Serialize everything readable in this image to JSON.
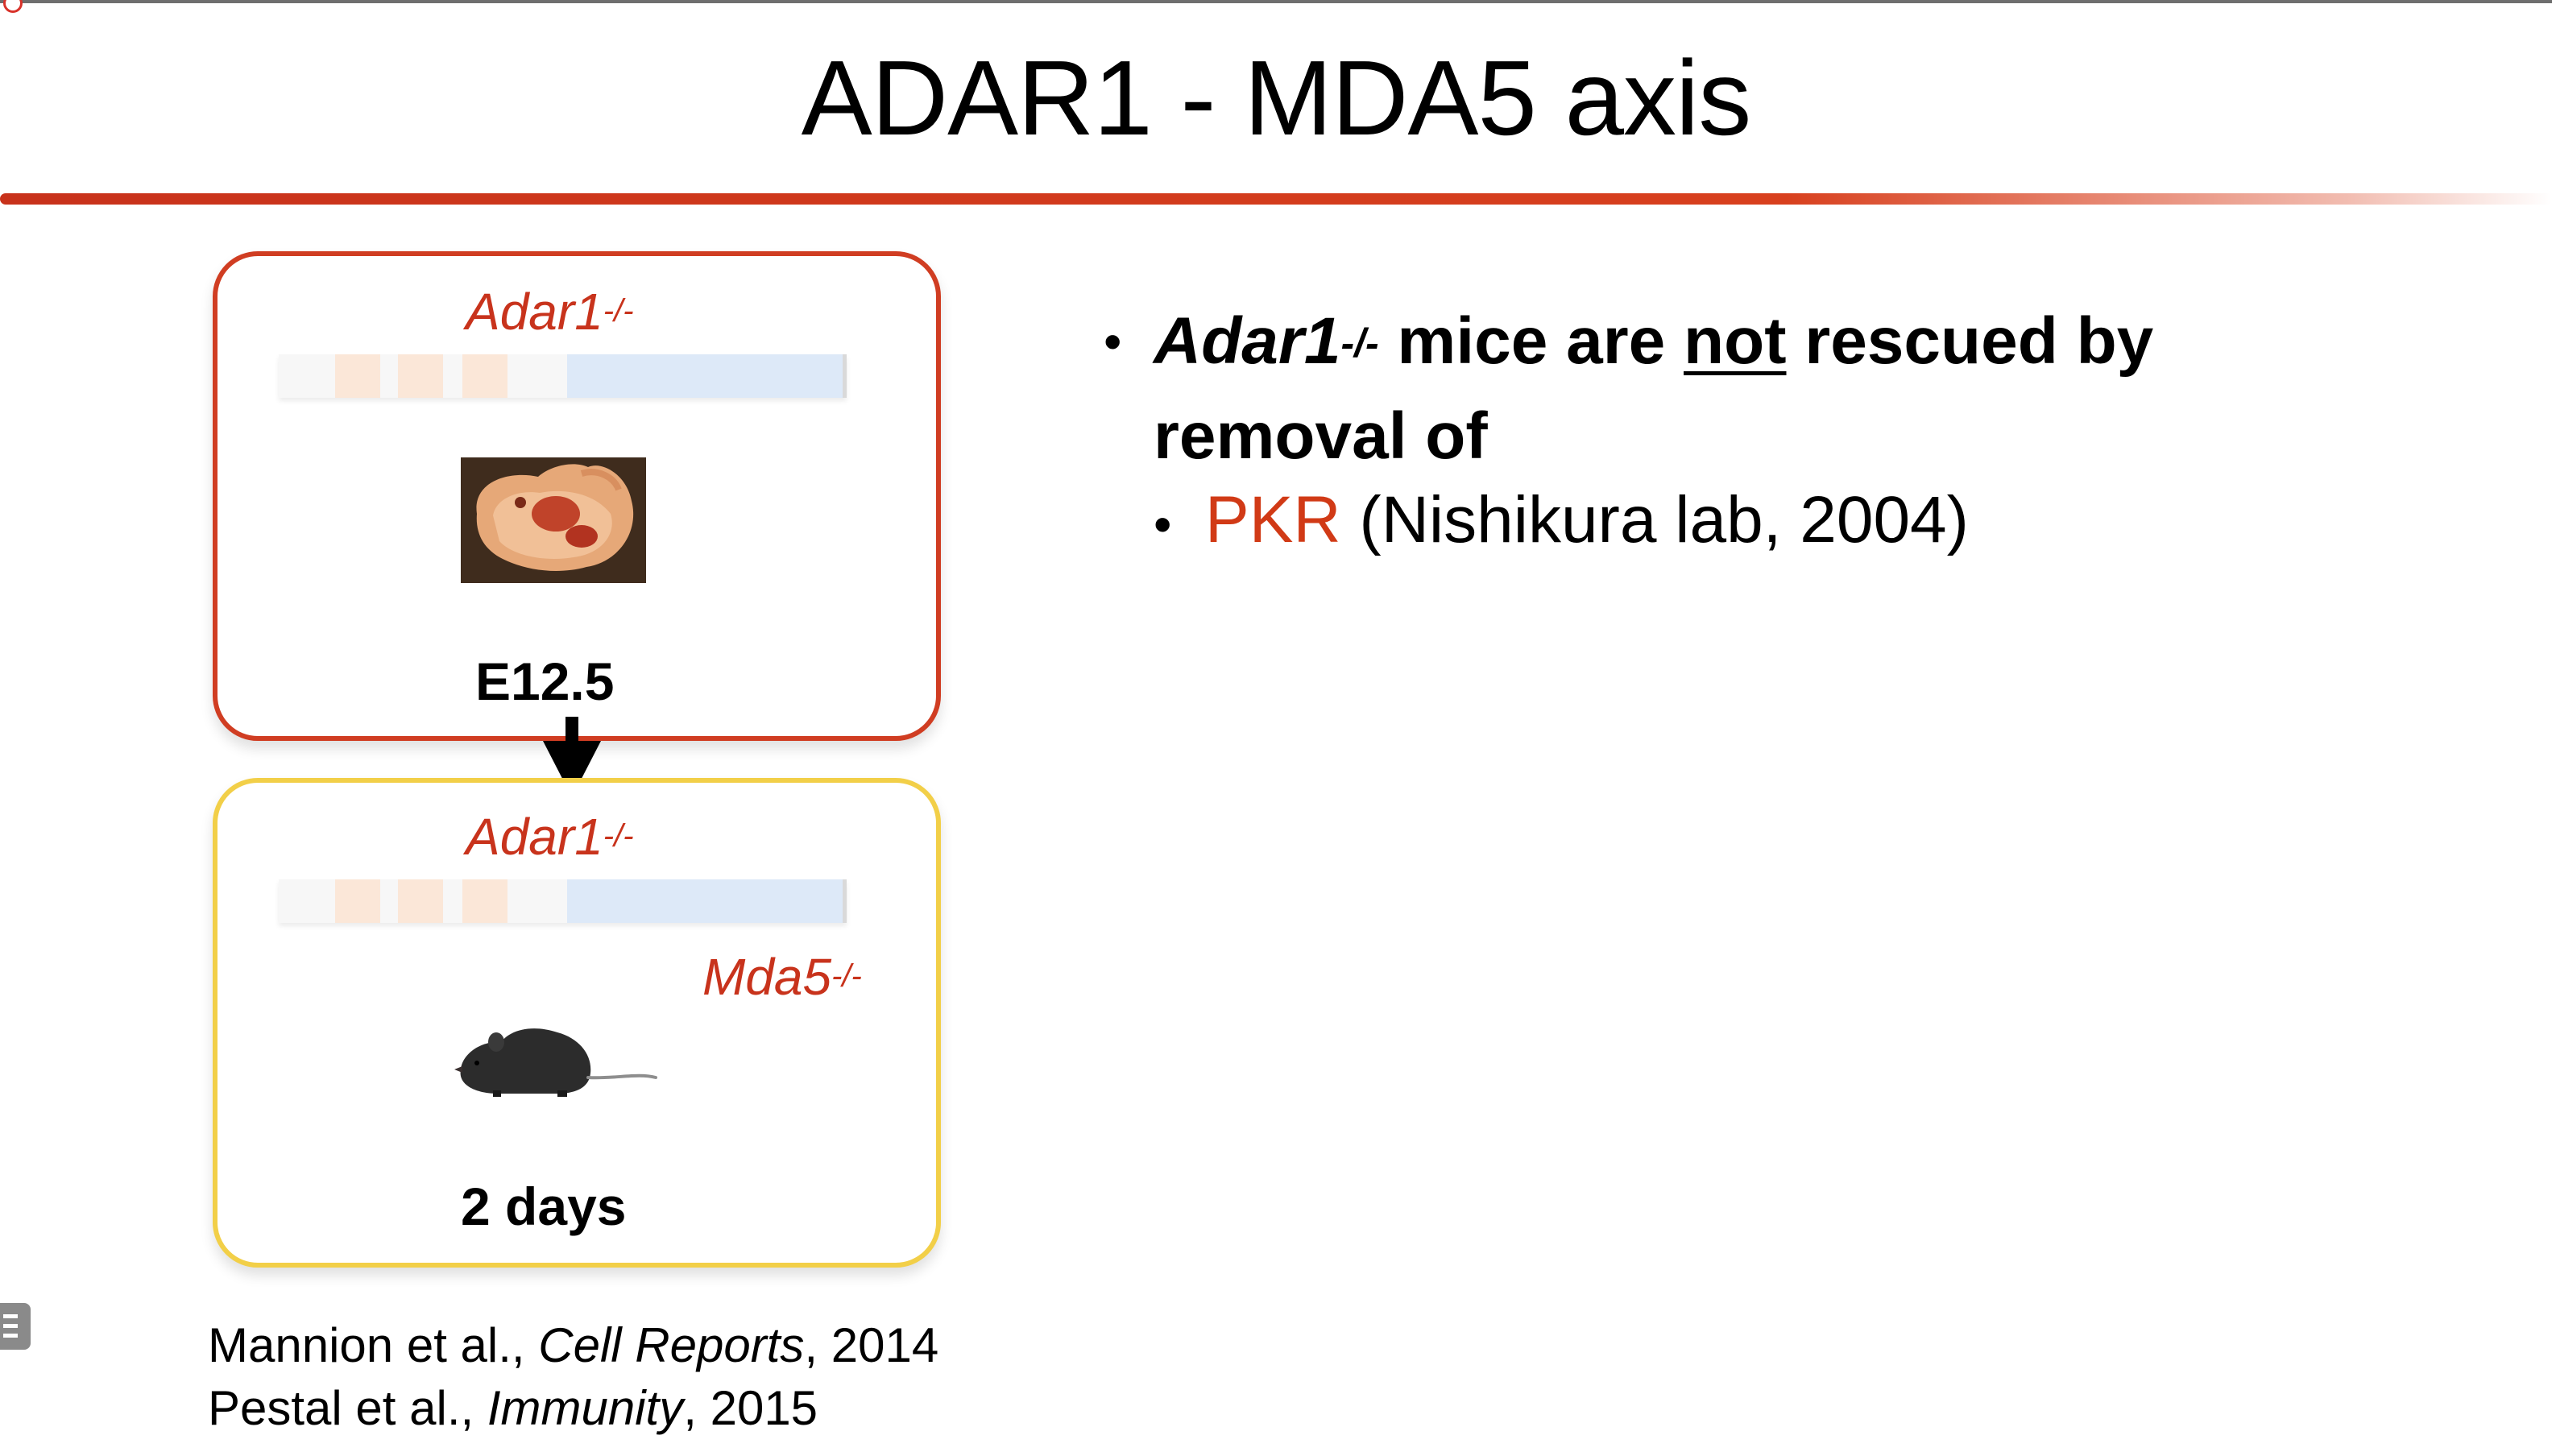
{
  "slide": {
    "title": "ADAR1 - MDA5 axis",
    "box_top": {
      "gene_label": "Adar1",
      "gene_sup": "-/-",
      "stage": "E12.5"
    },
    "box_bottom": {
      "gene_label": "Adar1",
      "gene_sup": "-/-",
      "second_gene_label": "Mda5",
      "second_gene_sup": "-/-",
      "stage": "2 days"
    },
    "bullet1": {
      "gene": "Adar1",
      "sup": "-/-",
      "text_before": " mice are ",
      "emphasis": "not",
      "text_after": " rescued by removal of"
    },
    "bullet2": {
      "highlight": "PKR",
      "rest": " (Nishikura lab, 2004)"
    },
    "references": [
      {
        "authors": "Mannion et al., ",
        "journal": "Cell Reports",
        "year": ", 2014"
      },
      {
        "authors": "Pestal et al., ",
        "journal": "Immunity",
        "year": ", 2015"
      }
    ]
  },
  "colors": {
    "accent_red": "#c8331c",
    "box_red": "#d03d22",
    "box_yellow": "#f2cf48"
  },
  "icons": {
    "embryo": "embryo-photo",
    "mouse": "mouse-photo",
    "arrow": "down-arrow-icon"
  }
}
